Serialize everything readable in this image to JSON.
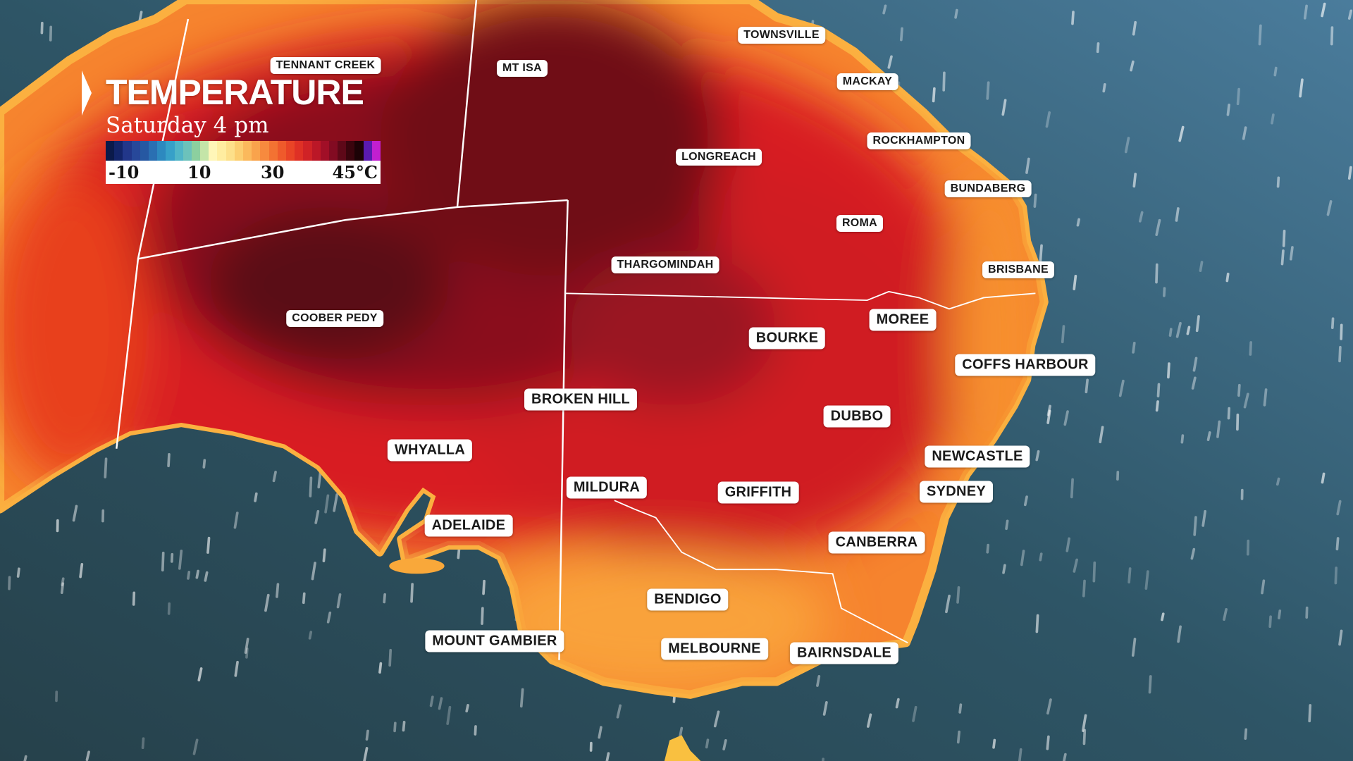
{
  "legend": {
    "title": "TEMPERATURE",
    "subtitle": "Saturday 4 pm",
    "ticks": [
      "-10",
      "10",
      "30",
      "45°C"
    ],
    "colors": [
      "#0b1a4a",
      "#13256a",
      "#22378a",
      "#27489a",
      "#2658a2",
      "#2a6fb2",
      "#2d89bf",
      "#37a0c8",
      "#50b5c7",
      "#6cc2bb",
      "#8ccf9f",
      "#c4e5a8",
      "#fff6b8",
      "#ffeda0",
      "#fde08a",
      "#fcce70",
      "#fbb95c",
      "#f9a34c",
      "#f78a3e",
      "#f37232",
      "#ef5a2b",
      "#e94426",
      "#df3025",
      "#d02226",
      "#bb1727",
      "#a10f27",
      "#820b22",
      "#5e0818",
      "#3a040d",
      "#1c0206",
      "#5a1ab0",
      "#c21fd0"
    ]
  },
  "colors": {
    "ocean_dark": "#2a4650",
    "ocean_blue": "#3b6e90",
    "coast": "#fbb040",
    "land_orange": "#f4782c",
    "land_red": "#d61f22",
    "land_maroon": "#6a0a16"
  },
  "places": [
    {
      "name": "TENNANT CREEK",
      "size": "sm"
    },
    {
      "name": "MT ISA",
      "size": "sm"
    },
    {
      "name": "TOWNSVILLE",
      "size": "sm"
    },
    {
      "name": "MACKAY",
      "size": "sm"
    },
    {
      "name": "ROCKHAMPTON",
      "size": "sm"
    },
    {
      "name": "LONGREACH",
      "size": "sm"
    },
    {
      "name": "BUNDABERG",
      "size": "sm"
    },
    {
      "name": "ROMA",
      "size": "sm"
    },
    {
      "name": "THARGOMINDAH",
      "size": "sm"
    },
    {
      "name": "BRISBANE",
      "size": "sm"
    },
    {
      "name": "COOBER PEDY",
      "size": "sm"
    },
    {
      "name": "MOREE",
      "size": "lg"
    },
    {
      "name": "BOURKE",
      "size": "lg"
    },
    {
      "name": "COFFS HARBOUR",
      "size": "lg"
    },
    {
      "name": "BROKEN HILL",
      "size": "lg"
    },
    {
      "name": "DUBBO",
      "size": "lg"
    },
    {
      "name": "WHYALLA",
      "size": "lg"
    },
    {
      "name": "NEWCASTLE",
      "size": "lg"
    },
    {
      "name": "MILDURA",
      "size": "lg"
    },
    {
      "name": "GRIFFITH",
      "size": "lg"
    },
    {
      "name": "SYDNEY",
      "size": "lg"
    },
    {
      "name": "ADELAIDE",
      "size": "lg"
    },
    {
      "name": "CANBERRA",
      "size": "lg"
    },
    {
      "name": "BENDIGO",
      "size": "lg"
    },
    {
      "name": "MOUNT GAMBIER",
      "size": "lg"
    },
    {
      "name": "MELBOURNE",
      "size": "lg"
    },
    {
      "name": "BAIRNSDALE",
      "size": "lg"
    }
  ]
}
